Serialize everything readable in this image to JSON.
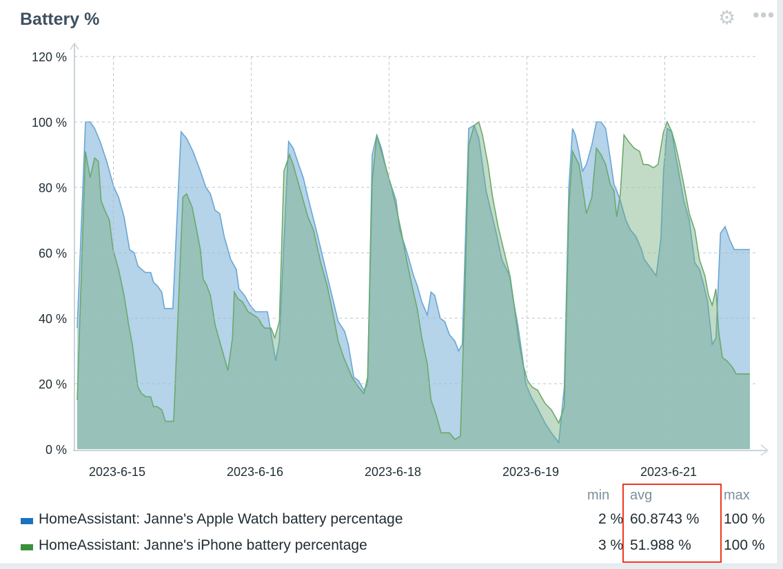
{
  "widget": {
    "title": "Battery %",
    "settings_icon": "gear-icon",
    "menu_icon": "ellipsis-icon"
  },
  "legend": {
    "headers": {
      "min": "min",
      "avg": "avg",
      "max": "max"
    },
    "rows": [
      {
        "name": "HomeAssistant: Janne's Apple Watch battery percentage",
        "color": "#1a73bf",
        "min": "2 %",
        "avg": "60.8743 %",
        "max": "100 %"
      },
      {
        "name": "HomeAssistant: Janne's iPhone battery percentage",
        "color": "#3a903a",
        "min": "3 %",
        "avg": "51.988 %",
        "max": "100 %"
      }
    ],
    "highlight_color": "#f0361e"
  },
  "chart_data": {
    "type": "area",
    "title": "Battery %",
    "ylim": [
      0,
      120
    ],
    "yticks": [
      "0 %",
      "20 %",
      "40 %",
      "60 %",
      "80 %",
      "100 %",
      "120 %"
    ],
    "ytick_values": [
      0,
      20,
      40,
      60,
      80,
      100,
      120
    ],
    "xlim": [
      14.61,
      21.93
    ],
    "xticks": [
      "2023-6-15",
      "2023-6-16",
      "2023-6-18",
      "2023-6-19",
      "2023-6-21"
    ],
    "xtick_values": [
      15,
      16.5,
      18,
      19.5,
      21
    ],
    "grid": true,
    "legend": "bottom",
    "series": [
      {
        "name": "HomeAssistant: Janne's Apple Watch battery percentage",
        "line_color": "#68a6d4",
        "fill_color": "rgba(120,175,215,0.55)",
        "points": [
          [
            14.61,
            37
          ],
          [
            14.7,
            100
          ],
          [
            14.75,
            100
          ],
          [
            14.8,
            98
          ],
          [
            14.86,
            94
          ],
          [
            14.93,
            88
          ],
          [
            15.01,
            80
          ],
          [
            15.06,
            77
          ],
          [
            15.12,
            71
          ],
          [
            15.18,
            61
          ],
          [
            15.23,
            60
          ],
          [
            15.27,
            56
          ],
          [
            15.31,
            55
          ],
          [
            15.35,
            54
          ],
          [
            15.41,
            54
          ],
          [
            15.44,
            51
          ],
          [
            15.48,
            50
          ],
          [
            15.53,
            48
          ],
          [
            15.56,
            43
          ],
          [
            15.65,
            43
          ],
          [
            15.74,
            97
          ],
          [
            15.8,
            95
          ],
          [
            15.87,
            91
          ],
          [
            15.95,
            85
          ],
          [
            16.01,
            80
          ],
          [
            16.06,
            78
          ],
          [
            16.11,
            73
          ],
          [
            16.16,
            72
          ],
          [
            16.21,
            65
          ],
          [
            16.28,
            58
          ],
          [
            16.34,
            55
          ],
          [
            16.37,
            49
          ],
          [
            16.43,
            47
          ],
          [
            16.49,
            44
          ],
          [
            16.55,
            42
          ],
          [
            16.62,
            42
          ],
          [
            16.68,
            42
          ],
          [
            16.77,
            27
          ],
          [
            16.81,
            33
          ],
          [
            16.91,
            94
          ],
          [
            16.96,
            92
          ],
          [
            17.02,
            87
          ],
          [
            17.07,
            83
          ],
          [
            17.12,
            77
          ],
          [
            17.22,
            66
          ],
          [
            17.33,
            53
          ],
          [
            17.45,
            39
          ],
          [
            17.52,
            36
          ],
          [
            17.56,
            32
          ],
          [
            17.62,
            22
          ],
          [
            17.67,
            21
          ],
          [
            17.73,
            18
          ],
          [
            17.77,
            20
          ],
          [
            17.82,
            90
          ],
          [
            17.87,
            96
          ],
          [
            17.92,
            92
          ],
          [
            17.97,
            86
          ],
          [
            18.01,
            82
          ],
          [
            18.08,
            76
          ],
          [
            18.12,
            67
          ],
          [
            18.2,
            60
          ],
          [
            18.27,
            53
          ],
          [
            18.31,
            50
          ],
          [
            18.36,
            45
          ],
          [
            18.42,
            41
          ],
          [
            18.46,
            48
          ],
          [
            18.5,
            47
          ],
          [
            18.56,
            40
          ],
          [
            18.61,
            39
          ],
          [
            18.66,
            35
          ],
          [
            18.72,
            33
          ],
          [
            18.76,
            30
          ],
          [
            18.8,
            32
          ],
          [
            18.87,
            98
          ],
          [
            18.93,
            99
          ],
          [
            18.98,
            95
          ],
          [
            19.02,
            87
          ],
          [
            19.06,
            79
          ],
          [
            19.11,
            73
          ],
          [
            19.17,
            66
          ],
          [
            19.23,
            58
          ],
          [
            19.28,
            55
          ],
          [
            19.32,
            53
          ],
          [
            19.36,
            45
          ],
          [
            19.41,
            37
          ],
          [
            19.46,
            27
          ],
          [
            19.49,
            20
          ],
          [
            19.55,
            16
          ],
          [
            19.61,
            13
          ],
          [
            19.7,
            8
          ],
          [
            19.77,
            5
          ],
          [
            19.85,
            2
          ],
          [
            19.91,
            19
          ],
          [
            19.96,
            80
          ],
          [
            20.0,
            98
          ],
          [
            20.03,
            96
          ],
          [
            20.07,
            91
          ],
          [
            20.11,
            85
          ],
          [
            20.15,
            87
          ],
          [
            20.21,
            93
          ],
          [
            20.26,
            100
          ],
          [
            20.31,
            100
          ],
          [
            20.36,
            98
          ],
          [
            20.41,
            89
          ],
          [
            20.45,
            81
          ],
          [
            20.48,
            79
          ],
          [
            20.52,
            76
          ],
          [
            20.58,
            70
          ],
          [
            20.63,
            67
          ],
          [
            20.69,
            65
          ],
          [
            20.75,
            61
          ],
          [
            20.78,
            58
          ],
          [
            20.86,
            55
          ],
          [
            20.91,
            53
          ],
          [
            20.96,
            64
          ],
          [
            20.99,
            85
          ],
          [
            21.03,
            98
          ],
          [
            21.08,
            97
          ],
          [
            21.12,
            90
          ],
          [
            21.16,
            84
          ],
          [
            21.21,
            76
          ],
          [
            21.27,
            70
          ],
          [
            21.33,
            57
          ],
          [
            21.38,
            55
          ],
          [
            21.42,
            51
          ],
          [
            21.47,
            45
          ],
          [
            21.52,
            32
          ],
          [
            21.56,
            34
          ],
          [
            21.61,
            66
          ],
          [
            21.66,
            68
          ],
          [
            21.71,
            64
          ],
          [
            21.76,
            61
          ],
          [
            21.93,
            61
          ]
        ]
      },
      {
        "name": "HomeAssistant: Janne's iPhone battery percentage",
        "line_color": "#6aa96c",
        "fill_color": "rgba(110,170,120,0.42)",
        "points": [
          [
            14.61,
            15
          ],
          [
            14.7,
            91
          ],
          [
            14.75,
            83
          ],
          [
            14.8,
            89
          ],
          [
            14.84,
            88
          ],
          [
            14.87,
            76
          ],
          [
            14.91,
            73
          ],
          [
            14.96,
            70
          ],
          [
            15.0,
            61
          ],
          [
            15.06,
            55
          ],
          [
            15.12,
            47
          ],
          [
            15.17,
            38
          ],
          [
            15.21,
            32
          ],
          [
            15.27,
            19
          ],
          [
            15.31,
            17
          ],
          [
            15.36,
            16
          ],
          [
            15.41,
            16
          ],
          [
            15.44,
            13
          ],
          [
            15.48,
            13
          ],
          [
            15.53,
            12
          ],
          [
            15.57,
            8.5
          ],
          [
            15.66,
            8.5
          ],
          [
            15.76,
            77
          ],
          [
            15.8,
            78
          ],
          [
            15.86,
            74
          ],
          [
            15.91,
            67
          ],
          [
            15.95,
            61
          ],
          [
            15.98,
            52
          ],
          [
            16.02,
            50
          ],
          [
            16.06,
            47
          ],
          [
            16.11,
            38
          ],
          [
            16.17,
            32
          ],
          [
            16.25,
            24
          ],
          [
            16.3,
            34
          ],
          [
            16.32,
            48
          ],
          [
            16.36,
            46
          ],
          [
            16.41,
            45
          ],
          [
            16.47,
            42
          ],
          [
            16.53,
            41
          ],
          [
            16.58,
            40
          ],
          [
            16.62,
            38
          ],
          [
            16.65,
            37
          ],
          [
            16.72,
            37
          ],
          [
            16.76,
            34
          ],
          [
            16.81,
            39
          ],
          [
            16.86,
            85
          ],
          [
            16.92,
            90
          ],
          [
            16.96,
            87
          ],
          [
            17.02,
            81
          ],
          [
            17.07,
            76
          ],
          [
            17.12,
            71
          ],
          [
            17.18,
            67
          ],
          [
            17.26,
            57
          ],
          [
            17.33,
            50
          ],
          [
            17.41,
            39
          ],
          [
            17.45,
            33
          ],
          [
            17.51,
            28
          ],
          [
            17.6,
            22
          ],
          [
            17.67,
            19
          ],
          [
            17.73,
            17
          ],
          [
            17.77,
            22
          ],
          [
            17.82,
            82
          ],
          [
            17.87,
            96
          ],
          [
            17.92,
            91
          ],
          [
            17.97,
            86
          ],
          [
            18.03,
            80
          ],
          [
            18.08,
            74
          ],
          [
            18.14,
            66
          ],
          [
            18.2,
            57
          ],
          [
            18.26,
            49
          ],
          [
            18.31,
            43
          ],
          [
            18.36,
            34
          ],
          [
            18.42,
            26
          ],
          [
            18.46,
            15
          ],
          [
            18.51,
            11
          ],
          [
            18.57,
            5
          ],
          [
            18.66,
            5
          ],
          [
            18.72,
            3
          ],
          [
            18.78,
            4
          ],
          [
            18.83,
            49
          ],
          [
            18.87,
            93
          ],
          [
            18.93,
            99
          ],
          [
            18.98,
            100
          ],
          [
            19.02,
            96
          ],
          [
            19.08,
            87
          ],
          [
            19.13,
            77
          ],
          [
            19.19,
            68
          ],
          [
            19.25,
            61
          ],
          [
            19.31,
            54
          ],
          [
            19.36,
            45
          ],
          [
            19.41,
            34
          ],
          [
            19.46,
            26
          ],
          [
            19.51,
            21
          ],
          [
            19.56,
            19
          ],
          [
            19.62,
            18
          ],
          [
            19.7,
            14
          ],
          [
            19.77,
            12
          ],
          [
            19.85,
            8
          ],
          [
            19.91,
            13
          ],
          [
            19.96,
            74
          ],
          [
            20.0,
            91
          ],
          [
            20.07,
            87
          ],
          [
            20.11,
            80
          ],
          [
            20.15,
            72
          ],
          [
            20.21,
            77
          ],
          [
            20.26,
            92
          ],
          [
            20.31,
            90
          ],
          [
            20.36,
            87
          ],
          [
            20.41,
            81
          ],
          [
            20.45,
            79
          ],
          [
            20.48,
            71
          ],
          [
            20.52,
            78
          ],
          [
            20.56,
            96
          ],
          [
            20.61,
            94
          ],
          [
            20.67,
            92
          ],
          [
            20.73,
            91
          ],
          [
            20.77,
            87
          ],
          [
            20.82,
            87
          ],
          [
            20.88,
            86
          ],
          [
            20.93,
            87
          ],
          [
            20.99,
            97
          ],
          [
            21.03,
            100
          ],
          [
            21.08,
            97
          ],
          [
            21.12,
            93
          ],
          [
            21.16,
            88
          ],
          [
            21.21,
            81
          ],
          [
            21.27,
            72
          ],
          [
            21.33,
            67
          ],
          [
            21.38,
            58
          ],
          [
            21.44,
            53
          ],
          [
            21.48,
            47
          ],
          [
            21.52,
            44
          ],
          [
            21.56,
            49
          ],
          [
            21.59,
            36
          ],
          [
            21.63,
            28
          ],
          [
            21.68,
            27
          ],
          [
            21.74,
            25
          ],
          [
            21.78,
            23
          ],
          [
            21.93,
            23
          ]
        ]
      }
    ]
  }
}
